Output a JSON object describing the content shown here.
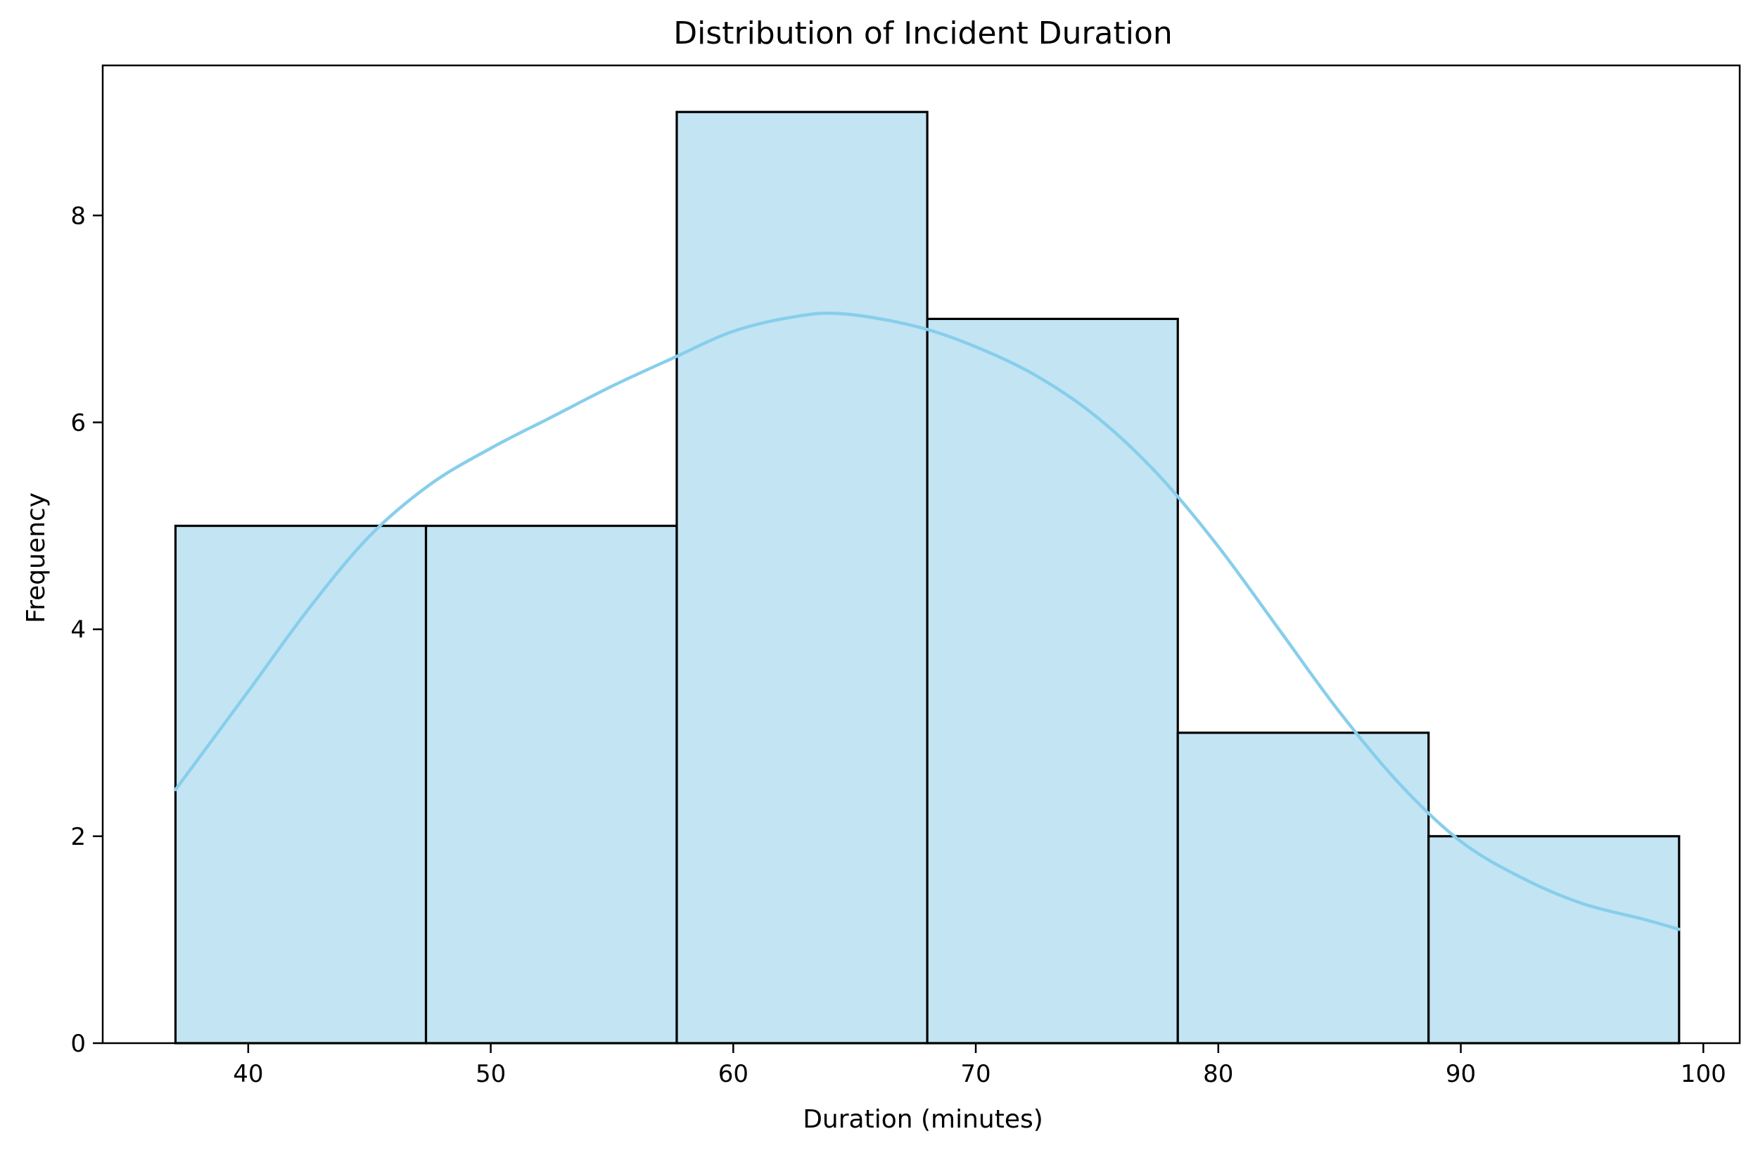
{
  "chart_data": {
    "type": "histogram",
    "title": "Distribution of Incident Duration",
    "xlabel": "Duration (minutes)",
    "ylabel": "Frequency",
    "bins": [
      {
        "start": 37.0,
        "end": 47.33,
        "count": 5
      },
      {
        "start": 47.33,
        "end": 57.67,
        "count": 5
      },
      {
        "start": 57.67,
        "end": 68.0,
        "count": 9
      },
      {
        "start": 68.0,
        "end": 78.33,
        "count": 7
      },
      {
        "start": 78.33,
        "end": 88.67,
        "count": 3
      },
      {
        "start": 88.67,
        "end": 99.0,
        "count": 2
      }
    ],
    "kde": {
      "x": [
        37,
        40,
        42.5,
        45,
        47.5,
        50,
        52.5,
        55,
        57.5,
        60,
        62.5,
        64.5,
        67.5,
        70,
        72.5,
        75,
        77.5,
        80,
        82.5,
        85,
        87.5,
        90,
        92.5,
        95,
        97.5,
        99
      ],
      "y": [
        2.45,
        3.4,
        4.2,
        4.9,
        5.4,
        5.75,
        6.05,
        6.35,
        6.62,
        6.88,
        7.02,
        7.05,
        6.93,
        6.73,
        6.45,
        6.05,
        5.5,
        4.8,
        4.0,
        3.2,
        2.5,
        1.95,
        1.6,
        1.35,
        1.2,
        1.1
      ]
    },
    "xlim": [
      34,
      101.5
    ],
    "ylim": [
      0,
      9.45
    ],
    "xticks": [
      40,
      50,
      60,
      70,
      80,
      90,
      100
    ],
    "yticks": [
      0,
      2,
      4,
      6,
      8
    ],
    "grid": false,
    "colors": {
      "bar_fill": "#c2e4f3",
      "bar_edge": "#000000",
      "kde_line": "#87ceeb",
      "axes": "#000000"
    }
  }
}
